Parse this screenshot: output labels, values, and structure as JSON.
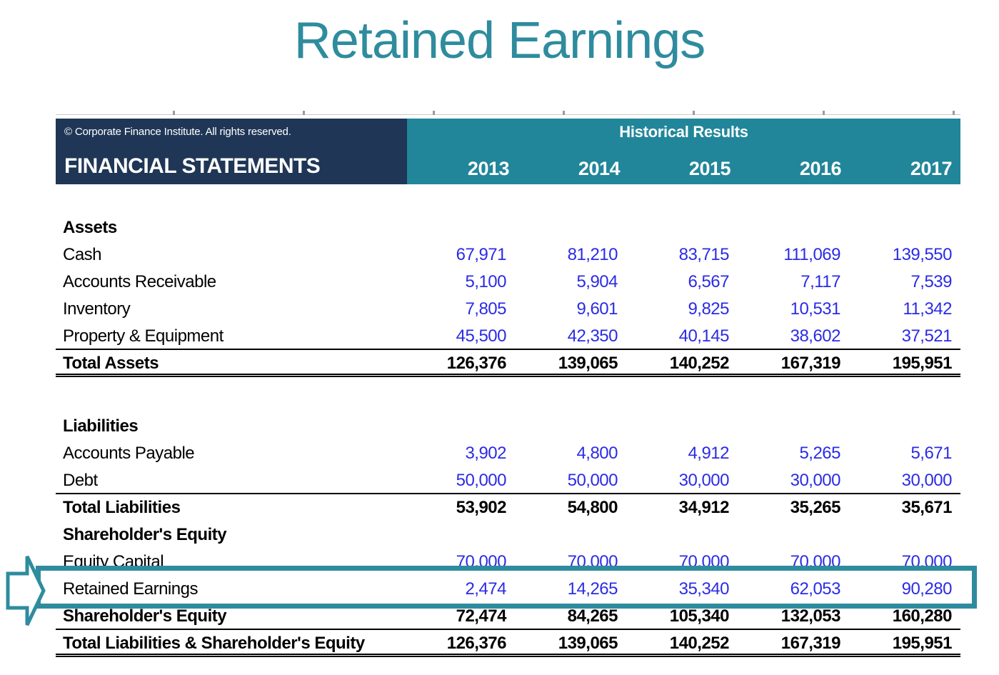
{
  "title": "Retained Earnings",
  "colors": {
    "accent_teal": "#2E8C9E",
    "header_teal": "#21869A",
    "header_navy": "#1F3656",
    "value_blue": "#2B2BE6",
    "text_black": "#000000",
    "text_white": "#ffffff"
  },
  "table": {
    "copyright": "© Corporate Finance Institute. All rights reserved.",
    "header_left": "FINANCIAL STATEMENTS",
    "header_group": "Historical Results",
    "years": [
      "2013",
      "2014",
      "2015",
      "2016",
      "2017"
    ],
    "rows": [
      {
        "type": "spacer",
        "height": 42
      },
      {
        "type": "section",
        "label": "Assets"
      },
      {
        "type": "item",
        "label": "Cash",
        "values": [
          "67,971",
          "81,210",
          "83,715",
          "111,069",
          "139,550"
        ]
      },
      {
        "type": "item",
        "label": "Accounts Receivable",
        "values": [
          "5,100",
          "5,904",
          "6,567",
          "7,117",
          "7,539"
        ]
      },
      {
        "type": "item",
        "label": "Inventory",
        "values": [
          "7,805",
          "9,601",
          "9,825",
          "10,531",
          "11,342"
        ]
      },
      {
        "type": "item",
        "label": "Property & Equipment",
        "values": [
          "45,500",
          "42,350",
          "40,145",
          "38,602",
          "37,521"
        ],
        "underline": "single"
      },
      {
        "type": "total",
        "label": "Total Assets",
        "values": [
          "126,376",
          "139,065",
          "140,252",
          "167,319",
          "195,951"
        ],
        "underline": "double"
      },
      {
        "type": "spacer",
        "height": 50
      },
      {
        "type": "section",
        "label": "Liabilities"
      },
      {
        "type": "item",
        "label": "Accounts Payable",
        "values": [
          "3,902",
          "4,800",
          "4,912",
          "5,265",
          "5,671"
        ]
      },
      {
        "type": "item",
        "label": "Debt",
        "values": [
          "50,000",
          "50,000",
          "30,000",
          "30,000",
          "30,000"
        ],
        "underline": "single"
      },
      {
        "type": "total",
        "label": "Total Liabilities",
        "values": [
          "53,902",
          "54,800",
          "34,912",
          "35,265",
          "35,671"
        ]
      },
      {
        "type": "section",
        "label": "Shareholder's Equity"
      },
      {
        "type": "item",
        "label": "Equity Capital",
        "values": [
          "70,000",
          "70,000",
          "70,000",
          "70,000",
          "70,000"
        ]
      },
      {
        "type": "item",
        "label": "Retained Earnings",
        "values": [
          "2,474",
          "14,265",
          "35,340",
          "62,053",
          "90,280"
        ],
        "highlight": true
      },
      {
        "type": "total",
        "label": "Shareholder's Equity",
        "values": [
          "72,474",
          "84,265",
          "105,340",
          "132,053",
          "160,280"
        ],
        "underline": "single"
      },
      {
        "type": "total",
        "label": "Total Liabilities & Shareholder's Equity",
        "values": [
          "126,376",
          "139,065",
          "140,252",
          "167,319",
          "195,951"
        ],
        "underline": "double"
      }
    ],
    "highlighted_row": "Retained Earnings"
  }
}
